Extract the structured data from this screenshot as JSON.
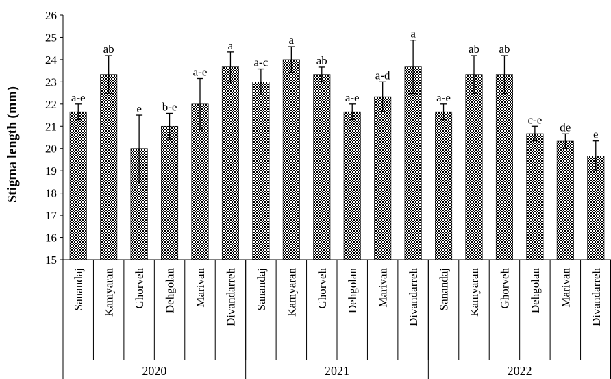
{
  "chart_data": {
    "type": "bar",
    "title": "",
    "xlabel": "",
    "ylabel": "Stigma length (mm)",
    "ylim": [
      15,
      26
    ],
    "yticks": [
      15,
      16,
      17,
      18,
      19,
      20,
      21,
      22,
      23,
      24,
      25,
      26
    ],
    "grid": false,
    "legend": "none",
    "bar_pattern": "checkered",
    "colors": {
      "bar": "#000000",
      "bar_fill": "#ffffff",
      "axis": "#000000"
    },
    "groups": [
      {
        "label": "2020",
        "bars": [
          {
            "category": "Sanandaj",
            "value": 21.65,
            "error": 0.35,
            "letters": "a-e"
          },
          {
            "category": "Kamyaran",
            "value": 23.33,
            "error": 0.85,
            "letters": "ab"
          },
          {
            "category": "Ghorveh",
            "value": 20.0,
            "error": 1.5,
            "letters": "e"
          },
          {
            "category": "Dehgolan",
            "value": 21.0,
            "error": 0.58,
            "letters": "b-e"
          },
          {
            "category": "Marivan",
            "value": 22.0,
            "error": 1.15,
            "letters": "a-e"
          },
          {
            "category": "Divandarreh",
            "value": 23.67,
            "error": 0.67,
            "letters": "a"
          }
        ]
      },
      {
        "label": "2021",
        "bars": [
          {
            "category": "Sanandaj",
            "value": 23.0,
            "error": 0.58,
            "letters": "a-c"
          },
          {
            "category": "Kamyaran",
            "value": 24.0,
            "error": 0.58,
            "letters": "a"
          },
          {
            "category": "Ghorveh",
            "value": 23.33,
            "error": 0.33,
            "letters": "ab"
          },
          {
            "category": "Dehgolan",
            "value": 21.65,
            "error": 0.35,
            "letters": "a-e"
          },
          {
            "category": "Marivan",
            "value": 22.33,
            "error": 0.67,
            "letters": "a-d"
          },
          {
            "category": "Divandarreh",
            "value": 23.67,
            "error": 1.2,
            "letters": "a"
          }
        ]
      },
      {
        "label": "2022",
        "bars": [
          {
            "category": "Sanandaj",
            "value": 21.65,
            "error": 0.35,
            "letters": "a-e"
          },
          {
            "category": "Kamyaran",
            "value": 23.33,
            "error": 0.85,
            "letters": "ab"
          },
          {
            "category": "Ghorveh",
            "value": 23.33,
            "error": 0.85,
            "letters": "ab"
          },
          {
            "category": "Dehgolan",
            "value": 20.67,
            "error": 0.33,
            "letters": "c-e"
          },
          {
            "category": "Marivan",
            "value": 20.33,
            "error": 0.33,
            "letters": "de"
          },
          {
            "category": "Divandarreh",
            "value": 19.67,
            "error": 0.67,
            "letters": "e"
          }
        ]
      }
    ]
  }
}
